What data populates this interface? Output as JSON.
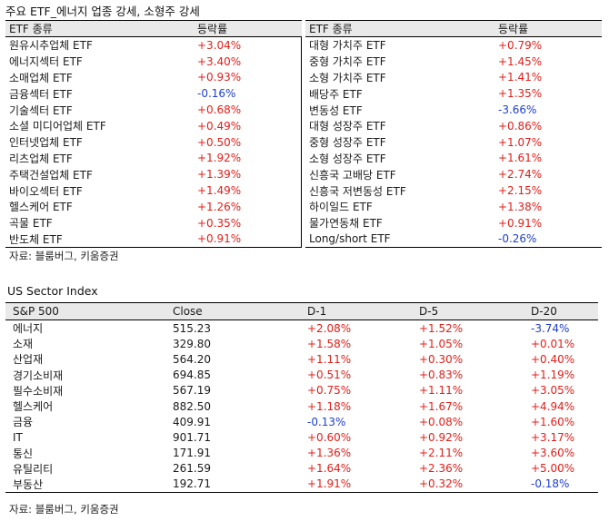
{
  "title": "주요 ETF_에너지 업종 강세, 소형주 강세",
  "etf_left": {
    "headers": [
      "ETF 종류",
      "등락률"
    ],
    "rows": [
      {
        "name": "원유시추업체 ETF",
        "value": "+3.04%"
      },
      {
        "name": "에너지섹터 ETF",
        "value": "+3.40%"
      },
      {
        "name": "소매업체 ETF",
        "value": "+0.93%"
      },
      {
        "name": "금융섹터 ETF",
        "value": "-0.16%"
      },
      {
        "name": "기술섹터 ETF",
        "value": "+0.68%"
      },
      {
        "name": "소셜 미디어업체 ETF",
        "value": "+0.49%"
      },
      {
        "name": "인터넷업체 ETF",
        "value": "+0.50%"
      },
      {
        "name": "리츠업체 ETF",
        "value": "+1.92%"
      },
      {
        "name": "주택건설업체 ETF",
        "value": "+1.39%"
      },
      {
        "name": "바이오섹터 ETF",
        "value": "+1.49%"
      },
      {
        "name": "헬스케어 ETF",
        "value": "+1.26%"
      },
      {
        "name": "곡물 ETF",
        "value": "+0.35%"
      },
      {
        "name": "반도체 ETF",
        "value": "+0.91%"
      }
    ]
  },
  "etf_right": {
    "headers": [
      "ETF 종류",
      "등락률"
    ],
    "rows": [
      {
        "name": "대형 가치주 ETF",
        "value": "+0.79%"
      },
      {
        "name": "중형 가치주 ETF",
        "value": "+1.45%"
      },
      {
        "name": "소형 가치주 ETF",
        "value": "+1.41%"
      },
      {
        "name": "배당주 ETF",
        "value": "+1.35%"
      },
      {
        "name": "변동성 ETF",
        "value": "-3.66%"
      },
      {
        "name": "대형 성장주 ETF",
        "value": "+0.86%"
      },
      {
        "name": "중형 성장주 ETF",
        "value": "+1.07%"
      },
      {
        "name": "소형 성장주 ETF",
        "value": "+1.61%"
      },
      {
        "name": "신흥국 고배당 ETF",
        "value": "+2.74%"
      },
      {
        "name": "신흥국 저변동성 ETF",
        "value": "+2.15%"
      },
      {
        "name": "하이일드 ETF",
        "value": "+1.38%"
      },
      {
        "name": "물가연동채 ETF",
        "value": "+0.91%"
      },
      {
        "name": "Long/short ETF",
        "value": "-0.26%"
      }
    ]
  },
  "source1": "자료: 블룸버그, 키움증권",
  "sector_title": "US Sector Index",
  "sector": {
    "headers": [
      "S&P 500",
      "Close",
      "D-1",
      "D-5",
      "D-20"
    ],
    "rows": [
      {
        "name": "에너지",
        "close": "515.23",
        "d1": "+2.08%",
        "d5": "+1.52%",
        "d20": "-3.74%"
      },
      {
        "name": "소재",
        "close": "329.80",
        "d1": "+1.58%",
        "d5": "+1.05%",
        "d20": "+0.01%"
      },
      {
        "name": "산업재",
        "close": "564.20",
        "d1": "+1.11%",
        "d5": "+0.30%",
        "d20": "+0.40%"
      },
      {
        "name": "경기소비재",
        "close": "694.85",
        "d1": "+0.51%",
        "d5": "+0.83%",
        "d20": "+1.19%"
      },
      {
        "name": "필수소비재",
        "close": "567.19",
        "d1": "+0.75%",
        "d5": "+1.11%",
        "d20": "+3.05%"
      },
      {
        "name": "헬스케어",
        "close": "882.50",
        "d1": "+1.18%",
        "d5": "+1.67%",
        "d20": "+4.94%"
      },
      {
        "name": "금융",
        "close": "409.91",
        "d1": "-0.13%",
        "d5": "+0.08%",
        "d20": "+1.60%"
      },
      {
        "name": "IT",
        "close": "901.71",
        "d1": "+0.60%",
        "d5": "+0.92%",
        "d20": "+3.17%"
      },
      {
        "name": "통신",
        "close": "171.91",
        "d1": "+1.36%",
        "d5": "+2.11%",
        "d20": "+3.60%"
      },
      {
        "name": "유틸리티",
        "close": "261.59",
        "d1": "+1.64%",
        "d5": "+2.36%",
        "d20": "+5.00%"
      },
      {
        "name": "부동산",
        "close": "192.71",
        "d1": "+1.91%",
        "d5": "+0.32%",
        "d20": "-0.18%"
      }
    ]
  },
  "source2": "자료: 블룸버그, 키움증권",
  "colors": {
    "positive": "#e0201b",
    "negative": "#1f3fcf"
  }
}
